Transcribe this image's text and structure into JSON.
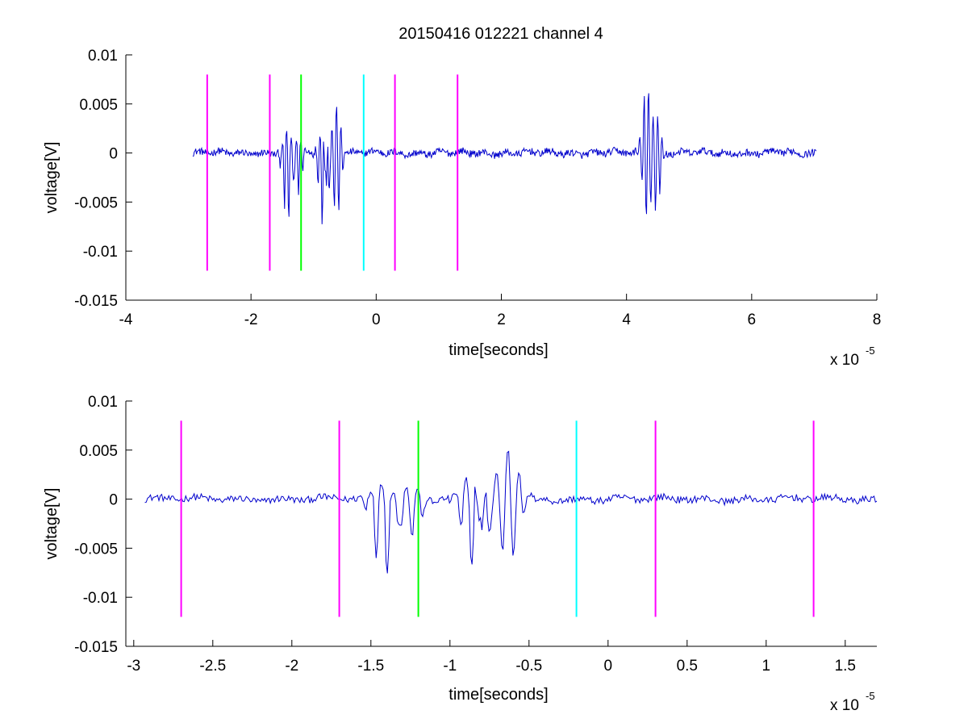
{
  "figure": {
    "title": "20150416 012221 channel 4"
  },
  "chart_data": [
    {
      "type": "line",
      "xlabel": "time[seconds]",
      "ylabel": "voltage[V]",
      "x_multiplier_label": "x 10",
      "x_multiplier_exponent": "-5",
      "xlim": [
        -4,
        8
      ],
      "ylim": [
        -0.015,
        0.01
      ],
      "xticks": [
        -4,
        -2,
        0,
        2,
        4,
        6,
        8
      ],
      "xtick_labels": [
        "-4",
        "-2",
        "0",
        "2",
        "4",
        "6",
        "8"
      ],
      "yticks": [
        0.01,
        0.005,
        0,
        -0.005,
        -0.01,
        -0.015
      ],
      "ytick_labels": [
        "0.01",
        "0.005",
        "0",
        "-0.005",
        "-0.01",
        "-0.015"
      ],
      "grid": false,
      "series": [
        {
          "color": "#0000cc",
          "x_range": [
            -2.93,
            7.03
          ],
          "samples": 850,
          "noise_amplitude": 0.0004,
          "bursts": [
            {
              "center": -1.42,
              "peak_negative": -0.0078,
              "peak_positive": 0.0018
            },
            {
              "center": -1.25,
              "peak_negative": -0.004,
              "peak_positive": 0.0015
            },
            {
              "center": -0.84,
              "peak_negative": -0.0107,
              "peak_positive": 0.0067
            },
            {
              "center": -0.8,
              "peak_negative": -0.008,
              "peak_positive": 0.0053
            },
            {
              "center": -0.63,
              "peak_negative": -0.0065,
              "peak_positive": 0.0053
            },
            {
              "center": 4.32,
              "peak_negative": -0.0065,
              "peak_positive": 0.0073
            },
            {
              "center": 4.48,
              "peak_negative": -0.006,
              "peak_positive": 0.004
            }
          ]
        }
      ],
      "markers": [
        {
          "x": -2.7,
          "color": "#ff00ff",
          "y_range": [
            -0.012,
            0.008
          ]
        },
        {
          "x": -1.7,
          "color": "#ff00ff",
          "y_range": [
            -0.012,
            0.008
          ]
        },
        {
          "x": -1.2,
          "color": "#00ff00",
          "y_range": [
            -0.012,
            0.008
          ]
        },
        {
          "x": -0.2,
          "color": "#00ffff",
          "y_range": [
            -0.012,
            0.008
          ]
        },
        {
          "x": 0.3,
          "color": "#ff00ff",
          "y_range": [
            -0.012,
            0.008
          ]
        },
        {
          "x": 1.3,
          "color": "#ff00ff",
          "y_range": [
            -0.012,
            0.008
          ]
        }
      ]
    },
    {
      "type": "line",
      "xlabel": "time[seconds]",
      "ylabel": "voltage[V]",
      "x_multiplier_label": "x 10",
      "x_multiplier_exponent": "-5",
      "xlim": [
        -3.05,
        1.7
      ],
      "ylim": [
        -0.015,
        0.01
      ],
      "xticks": [
        -3,
        -2.5,
        -2,
        -1.5,
        -1,
        -0.5,
        0,
        0.5,
        1,
        1.5
      ],
      "xtick_labels": [
        "-3",
        "-2.5",
        "-2",
        "-1.5",
        "-1",
        "-0.5",
        "0",
        "0.5",
        "1",
        "1.5"
      ],
      "yticks": [
        0.01,
        0.005,
        0,
        -0.005,
        -0.01,
        -0.015
      ],
      "ytick_labels": [
        "0.01",
        "0.005",
        "0",
        "-0.005",
        "-0.01",
        "-0.015"
      ],
      "grid": false,
      "series": [
        {
          "color": "#0000cc",
          "x_range": [
            -2.93,
            1.7
          ],
          "samples": 520,
          "noise_amplitude": 0.0004,
          "bursts": [
            {
              "center": -1.42,
              "peak_negative": -0.0078,
              "peak_positive": 0.0018
            },
            {
              "center": -1.25,
              "peak_negative": -0.004,
              "peak_positive": 0.0015
            },
            {
              "center": -0.84,
              "peak_negative": -0.0107,
              "peak_positive": 0.0067
            },
            {
              "center": -0.8,
              "peak_negative": -0.008,
              "peak_positive": 0.0053
            },
            {
              "center": -0.63,
              "peak_negative": -0.0065,
              "peak_positive": 0.0053
            }
          ]
        }
      ],
      "markers": [
        {
          "x": -2.7,
          "color": "#ff00ff",
          "y_range": [
            -0.012,
            0.008
          ]
        },
        {
          "x": -1.7,
          "color": "#ff00ff",
          "y_range": [
            -0.012,
            0.008
          ]
        },
        {
          "x": -1.2,
          "color": "#00ff00",
          "y_range": [
            -0.012,
            0.008
          ]
        },
        {
          "x": -0.2,
          "color": "#00ffff",
          "y_range": [
            -0.012,
            0.008
          ]
        },
        {
          "x": 0.3,
          "color": "#ff00ff",
          "y_range": [
            -0.012,
            0.008
          ]
        },
        {
          "x": 1.3,
          "color": "#ff00ff",
          "y_range": [
            -0.012,
            0.008
          ]
        }
      ]
    }
  ]
}
